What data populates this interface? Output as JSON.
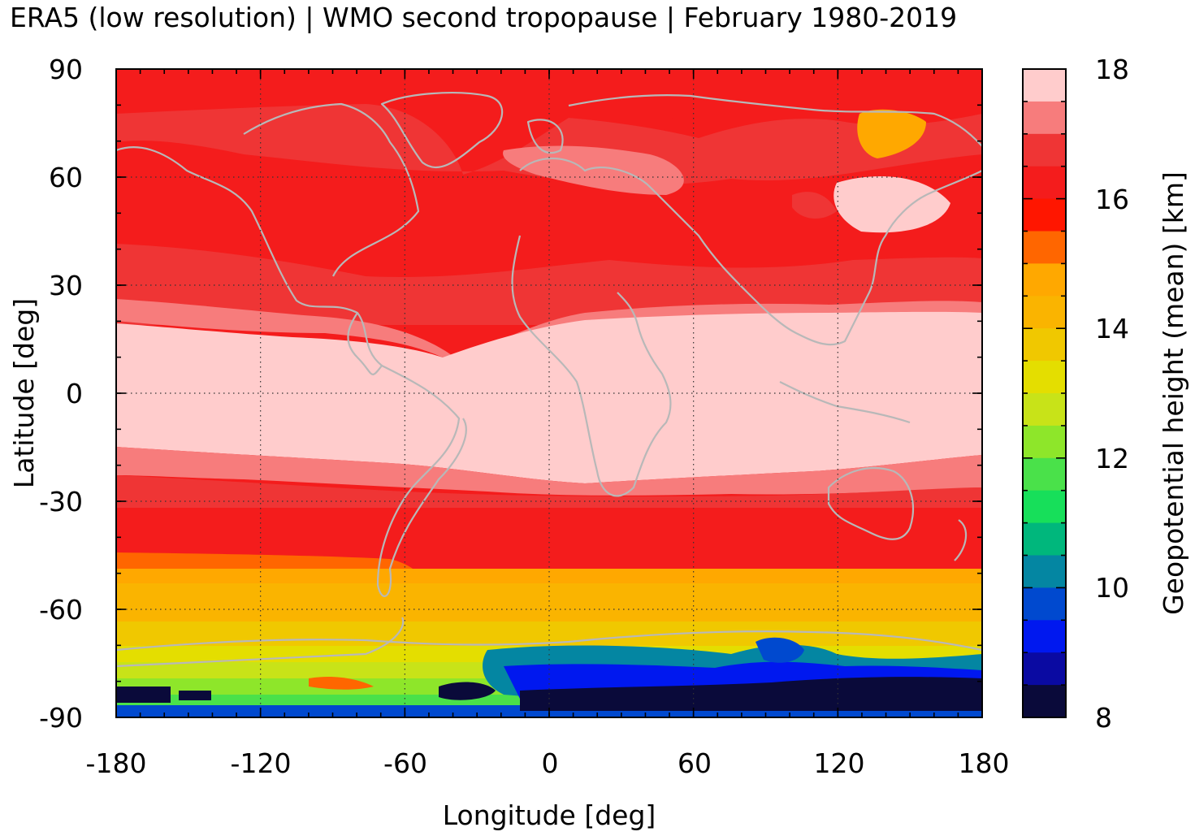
{
  "title": "ERA5 (low resolution) | WMO second tropopause | February 1980-2019",
  "chart_data": {
    "type": "heatmap",
    "title": "ERA5 (low resolution) | WMO second tropopause | February 1980-2019",
    "xlabel": "Longitude [deg]",
    "ylabel": "Latitude [deg]",
    "colorbar_label": "Geopotential height (mean) [km]",
    "xlim": [
      -180,
      180
    ],
    "ylim": [
      -90,
      90
    ],
    "x_ticks": [
      "-180",
      "-120",
      "-60",
      "0",
      "60",
      "120",
      "180"
    ],
    "y_ticks": [
      "90",
      "60",
      "30",
      "0",
      "-30",
      "-60",
      "-90"
    ],
    "colorbar": {
      "range": [
        8,
        18
      ],
      "tick_labels": [
        "18",
        "16",
        "14",
        "12",
        "10",
        "8"
      ],
      "levels_top_to_bottom": [
        "#ffcccc",
        "#f77c7c",
        "#ef3535",
        "#f41c1c",
        "#ff1600",
        "#ff6600",
        "#ffa800",
        "#fab400",
        "#f0c800",
        "#e4de00",
        "#c8e318",
        "#8ee62a",
        "#4ae14a",
        "#17df5a",
        "#00b77c",
        "#0486a2",
        "#0049cf",
        "#0018ef",
        "#0a0aa2",
        "#0a0a3a"
      ]
    },
    "grid": true,
    "coastline_color": "#b8b8b8",
    "zonal_mean_height_km": [
      {
        "lat": 90,
        "value": 16.4
      },
      {
        "lat": 75,
        "value": 16.6
      },
      {
        "lat": 60,
        "value": 16.3
      },
      {
        "lat": 45,
        "value": 16.3
      },
      {
        "lat": 30,
        "value": 16.5
      },
      {
        "lat": 22,
        "value": 17.2
      },
      {
        "lat": 15,
        "value": 17.8
      },
      {
        "lat": 0,
        "value": 17.8
      },
      {
        "lat": -15,
        "value": 17.8
      },
      {
        "lat": -25,
        "value": 17.2
      },
      {
        "lat": -33,
        "value": 16.5
      },
      {
        "lat": -45,
        "value": 16.0
      },
      {
        "lat": -52,
        "value": 15.0
      },
      {
        "lat": -62,
        "value": 14.5
      },
      {
        "lat": -70,
        "value": 13.8
      },
      {
        "lat": -78,
        "value": 12.5
      },
      {
        "lat": -84,
        "value": 9.0
      },
      {
        "lat": -90,
        "value": 9.5
      }
    ]
  }
}
